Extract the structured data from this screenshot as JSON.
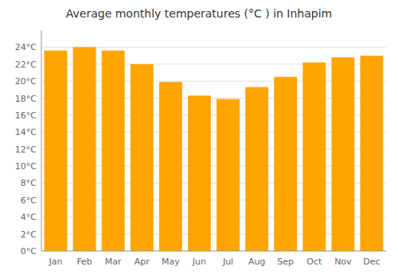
{
  "chart_data": {
    "type": "bar",
    "title": "Average monthly temperatures (°C ) in Inhapim",
    "categories": [
      "Jan",
      "Feb",
      "Mar",
      "Apr",
      "May",
      "Jun",
      "Jul",
      "Aug",
      "Sep",
      "Oct",
      "Nov",
      "Dec"
    ],
    "values": [
      23.6,
      24.0,
      23.6,
      22.0,
      19.9,
      18.3,
      17.9,
      19.3,
      20.5,
      22.2,
      22.8,
      23.0
    ],
    "color": "#FFA500",
    "ylim": [
      0,
      26
    ],
    "yticks": [
      {
        "value": 0,
        "label": "0°C"
      },
      {
        "value": 2,
        "label": "2°C"
      },
      {
        "value": 4,
        "label": "4°C"
      },
      {
        "value": 6,
        "label": "6°C"
      },
      {
        "value": 8,
        "label": "8°C"
      },
      {
        "value": 10,
        "label": "10°C"
      },
      {
        "value": 12,
        "label": "12°C"
      },
      {
        "value": 14,
        "label": "14°C"
      },
      {
        "value": 16,
        "label": "16°C"
      },
      {
        "value": 18,
        "label": "18°C"
      },
      {
        "value": 20,
        "label": "20°C"
      },
      {
        "value": 22,
        "label": "22°C"
      },
      {
        "value": 24,
        "label": "24°C"
      }
    ],
    "grid": true
  }
}
